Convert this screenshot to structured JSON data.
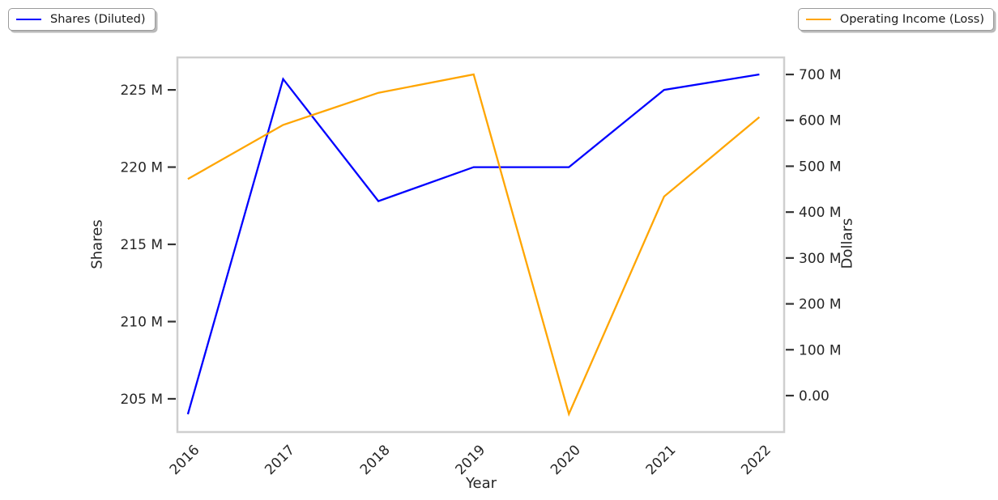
{
  "figure": {
    "background": "#ffffff",
    "text_color": "#262626",
    "frame_color": "#cfcfcf"
  },
  "legend_left": {
    "label": "Shares (Diluted)",
    "line_color": "#0000ff"
  },
  "legend_right": {
    "label": "Operating Income (Loss)",
    "line_color": "#ffa500"
  },
  "chart_data": {
    "type": "line",
    "title": "",
    "xlabel": "Year",
    "x": [
      2016,
      2017,
      2018,
      2019,
      2020,
      2021,
      2022
    ],
    "x_ticklabels": [
      "2016",
      "2017",
      "2018",
      "2019",
      "2020",
      "2021",
      "2022"
    ],
    "xlim": [
      2015.89,
      2022.26
    ],
    "grid": false,
    "series": [
      {
        "name": "Shares (Diluted)",
        "axis": "left",
        "color": "#0000ff",
        "unit": "shares",
        "values_millions": [
          204.0,
          225.7,
          217.8,
          220.0,
          220.0,
          225.0,
          226.0
        ]
      },
      {
        "name": "Operating Income (Loss)",
        "axis": "right",
        "color": "#ffa500",
        "unit": "dollars",
        "values_millions": [
          472,
          590,
          660,
          700,
          -40,
          434,
          607
        ]
      }
    ],
    "left_axis": {
      "label": "Shares",
      "tick_labels": [
        "205 M",
        "210 M",
        "215 M",
        "220 M",
        "225 M"
      ],
      "tick_values_millions": [
        205,
        210,
        215,
        220,
        225
      ],
      "range_millions": [
        202.85,
        227.1
      ]
    },
    "right_axis": {
      "label": "Dollars",
      "tick_labels": [
        "0.00",
        "100 M",
        "200 M",
        "300 M",
        "400 M",
        "500 M",
        "600 M",
        "700 M"
      ],
      "tick_values_millions": [
        0,
        100,
        200,
        300,
        400,
        500,
        600,
        700
      ],
      "range_millions": [
        -79.4,
        737.1
      ]
    },
    "legend_position": "figure top-left and top-right"
  }
}
